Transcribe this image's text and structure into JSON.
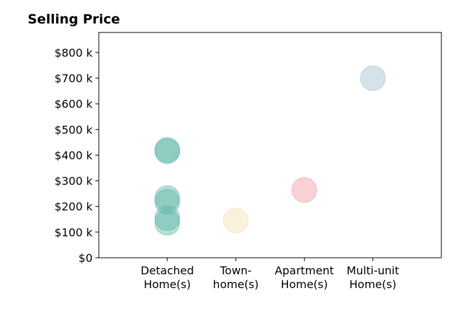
{
  "chart_data": {
    "type": "scatter",
    "title": "Selling Price",
    "categories": [
      "Detached\nHome(s)",
      "Town-\nhome(s)",
      "Apartment\nHome(s)",
      "Multi-unit\nHome(s)"
    ],
    "values": [
      [
        420,
        415,
        232,
        218,
        154,
        137
      ],
      [
        145
      ],
      [
        264
      ],
      [
        700
      ]
    ],
    "colors": [
      "#5fb8a8",
      "#f3dfb0",
      "#f09aa4",
      "#a3bfd1"
    ],
    "ylim": [
      0,
      878
    ],
    "yticks": [
      {
        "value": 0,
        "label": "$0"
      },
      {
        "value": 100,
        "label": "$100 k"
      },
      {
        "value": 200,
        "label": "$200 k"
      },
      {
        "value": 300,
        "label": "$300 k"
      },
      {
        "value": 400,
        "label": "$400 k"
      },
      {
        "value": 500,
        "label": "$500 k"
      },
      {
        "value": 600,
        "label": "$600 k"
      },
      {
        "value": 700,
        "label": "$700 k"
      },
      {
        "value": 800,
        "label": "$800 k"
      }
    ]
  }
}
